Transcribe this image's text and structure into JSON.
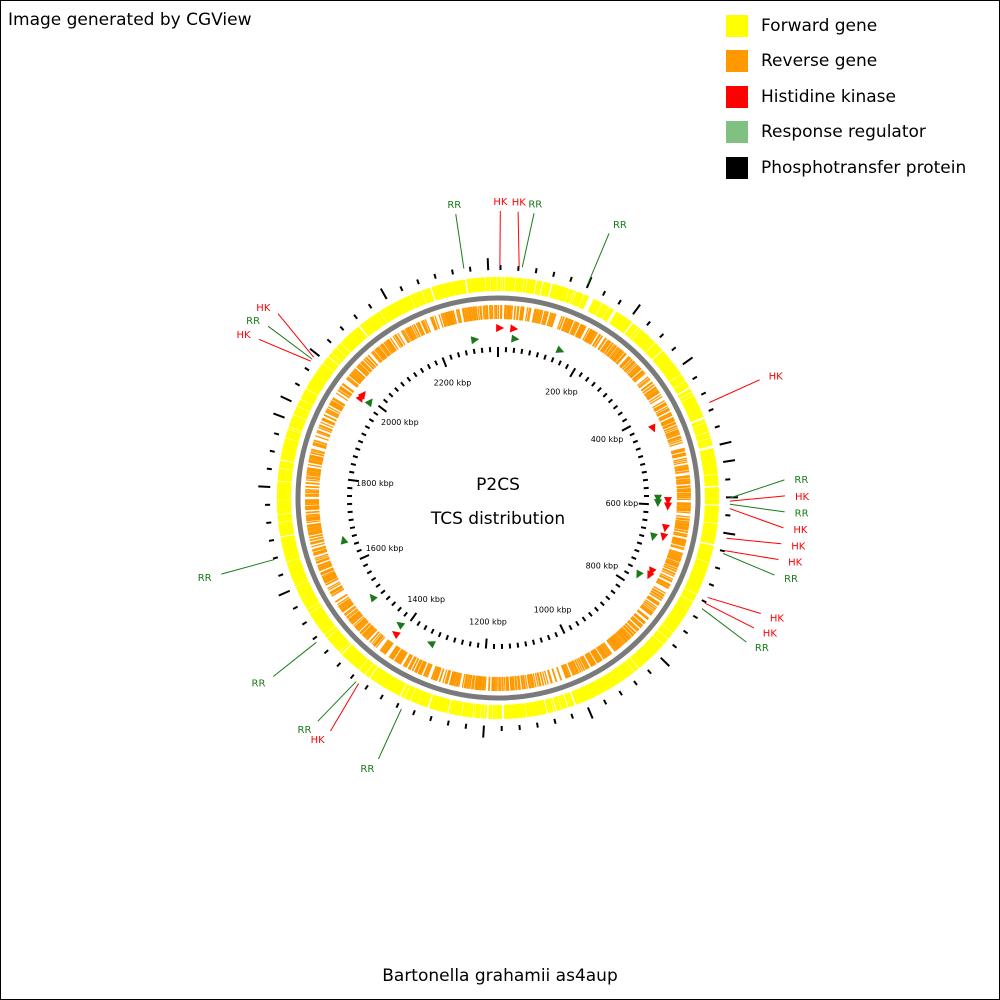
{
  "header": {
    "credit": "Image generated by CGView"
  },
  "legend": {
    "items": [
      {
        "label": "Forward gene",
        "color": "#ffff00"
      },
      {
        "label": "Reverse gene",
        "color": "#ff9900"
      },
      {
        "label": "Histidine kinase",
        "color": "#ff0000"
      },
      {
        "label": "Response regulator",
        "color": "#80c080"
      },
      {
        "label": "Phosphotransfer protein",
        "color": "#000000"
      }
    ]
  },
  "map": {
    "center_title": "P2CS",
    "center_subtitle": "TCS distribution",
    "genome": "Bartonella grahamii as4aup",
    "genome_length_kbp": 2340,
    "tick_labels": [
      "200 kbp",
      "400 kbp",
      "600 kbp",
      "800 kbp",
      "1000 kbp",
      "1200 kbp",
      "1400 kbp",
      "1600 kbp",
      "1800 kbp",
      "2000 kbp",
      "2200 kbp"
    ],
    "features": [
      {
        "type": "RR",
        "position_kbp": 2285
      },
      {
        "type": "HK",
        "position_kbp": 3
      },
      {
        "type": "HK",
        "position_kbp": 34
      },
      {
        "type": "RR",
        "position_kbp": 39
      },
      {
        "type": "RR",
        "position_kbp": 148
      },
      {
        "type": "HK",
        "position_kbp": 427
      },
      {
        "type": "RR",
        "position_kbp": 585
      },
      {
        "type": "HK",
        "position_kbp": 590
      },
      {
        "type": "RR",
        "position_kbp": 595
      },
      {
        "type": "HK",
        "position_kbp": 602
      },
      {
        "type": "HK",
        "position_kbp": 650
      },
      {
        "type": "HK",
        "position_kbp": 670
      },
      {
        "type": "RR",
        "position_kbp": 675
      },
      {
        "type": "HK",
        "position_kbp": 750
      },
      {
        "type": "HK",
        "position_kbp": 760
      },
      {
        "type": "RR",
        "position_kbp": 770
      },
      {
        "type": "RR",
        "position_kbp": 1330
      },
      {
        "type": "HK",
        "position_kbp": 1410
      },
      {
        "type": "RR",
        "position_kbp": 1415
      },
      {
        "type": "RR",
        "position_kbp": 1505
      },
      {
        "type": "RR",
        "position_kbp": 1655
      },
      {
        "type": "HK",
        "position_kbp": 1990
      },
      {
        "type": "RR",
        "position_kbp": 1994
      },
      {
        "type": "HK",
        "position_kbp": 1998
      }
    ]
  },
  "colors": {
    "forward": "#ffff00",
    "reverse": "#ff9900",
    "hk": "#ff0000",
    "rr": "#1a7a1a",
    "backbone": "#7a7a7a",
    "tick": "#000000"
  }
}
